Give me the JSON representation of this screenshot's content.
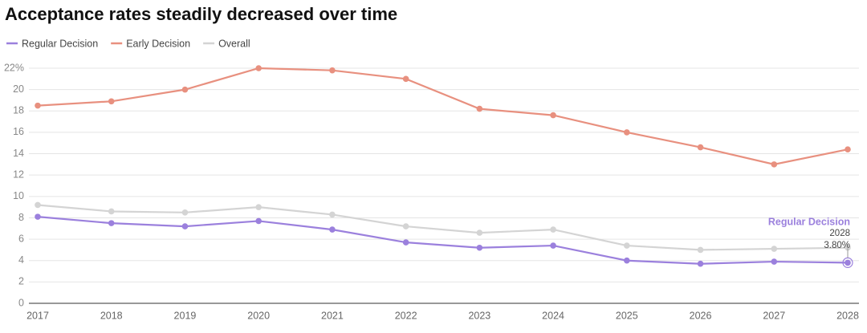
{
  "chart_data": {
    "type": "line",
    "title": "Acceptance rates steadily decreased over time",
    "x": [
      "2017",
      "2018",
      "2019",
      "2020",
      "2021",
      "2022",
      "2023",
      "2024",
      "2025",
      "2026",
      "2027",
      "2028"
    ],
    "series": [
      {
        "name": "Regular Decision",
        "color": "#9b80dd",
        "values": [
          8.1,
          7.5,
          7.2,
          7.7,
          6.9,
          5.7,
          5.2,
          5.4,
          4.0,
          3.7,
          3.9,
          3.8
        ]
      },
      {
        "name": "Early Decision",
        "color": "#e8907f",
        "values": [
          18.5,
          18.9,
          20.0,
          22.0,
          21.8,
          21.0,
          18.2,
          17.6,
          16.0,
          14.6,
          13.0,
          14.4
        ]
      },
      {
        "name": "Overall",
        "color": "#d4d4d4",
        "values": [
          9.2,
          8.6,
          8.5,
          9.0,
          8.3,
          7.2,
          6.6,
          6.9,
          5.4,
          5.0,
          5.1,
          5.2
        ]
      }
    ],
    "ylim": [
      0,
      22
    ],
    "yticks": [
      0,
      2,
      4,
      6,
      8,
      10,
      12,
      14,
      16,
      18,
      20,
      {
        "value": 22,
        "label": "22%"
      }
    ],
    "grid": true,
    "legend": "top-left",
    "annotation": {
      "series_label": "Regular Decision",
      "x_label": "2028",
      "value_label": "3.80%"
    }
  }
}
